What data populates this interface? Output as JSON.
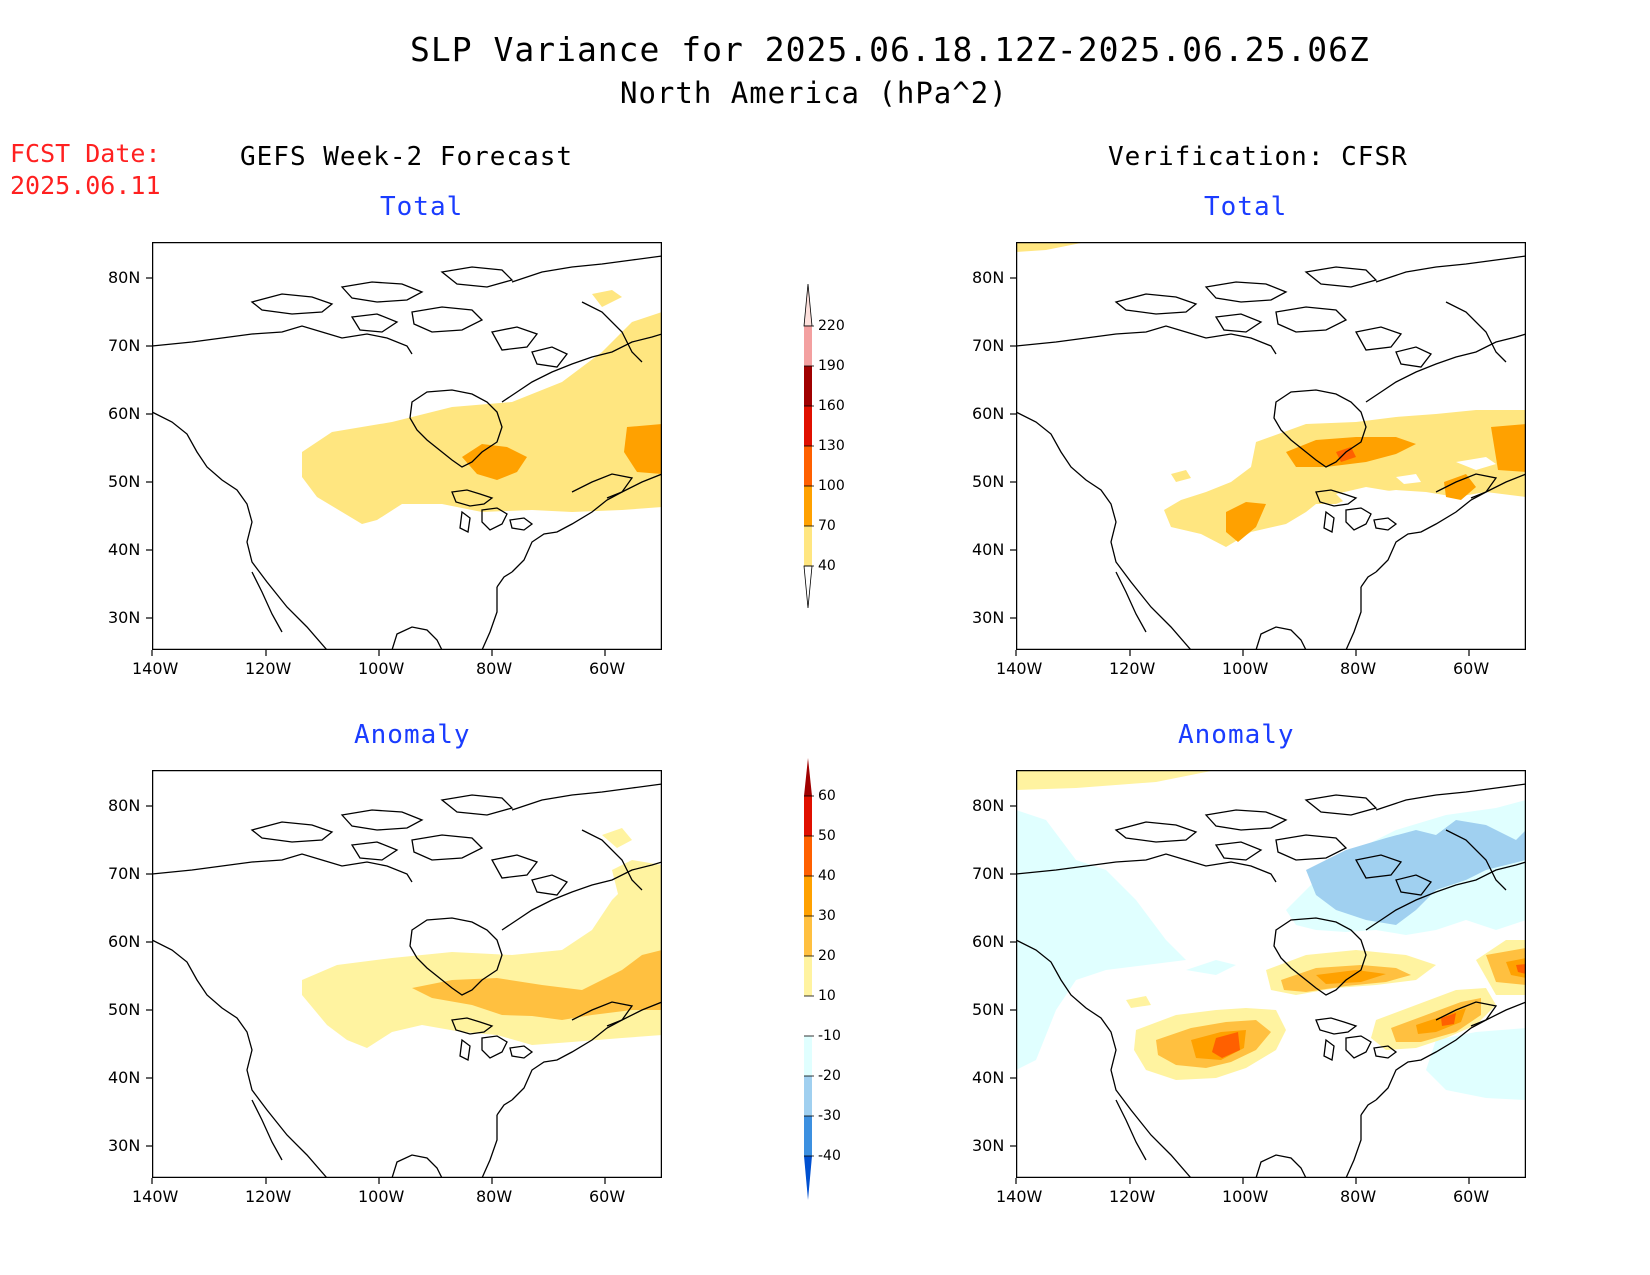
{
  "header": {
    "title": "SLP Variance for 2025.06.18.12Z-2025.06.25.06Z",
    "subtitle": "North America (hPa^2)",
    "fcst_label": "FCST Date:",
    "fcst_date": "2025.06.11"
  },
  "columns": {
    "left": "GEFS Week-2 Forecast",
    "right": "Verification: CFSR"
  },
  "panels": {
    "top_left": "Total",
    "top_right": "Total",
    "bottom_left": "Anomaly",
    "bottom_right": "Anomaly"
  },
  "axes": {
    "x_ticks": [
      "140W",
      "120W",
      "100W",
      "80W",
      "60W"
    ],
    "y_ticks": [
      "80N",
      "70N",
      "60N",
      "50N",
      "40N",
      "30N"
    ]
  },
  "colorbars": {
    "total": {
      "levels": [
        "40",
        "70",
        "100",
        "130",
        "160",
        "190",
        "220"
      ],
      "colors": [
        "#ffe680",
        "#ffa100",
        "#ff6000",
        "#e01000",
        "#a00000",
        "#f3a0a0",
        "#fde0dc"
      ]
    },
    "anomaly": {
      "levels": [
        "60",
        "50",
        "40",
        "30",
        "20",
        "10",
        "-10",
        "-20",
        "-30",
        "-40"
      ],
      "colors": {
        "above_60": "#a00000",
        "50_60": "#e01000",
        "40_50": "#ff6000",
        "30_40": "#ffa100",
        "20_30": "#ffc040",
        "10_20": "#fff3a0",
        "neutral": "#ffffff",
        "m10_m20": "#e0ffff",
        "m20_m30": "#a0d0f0",
        "m30_m40": "#3c90e0",
        "below_m40": "#0050d0"
      }
    }
  }
}
